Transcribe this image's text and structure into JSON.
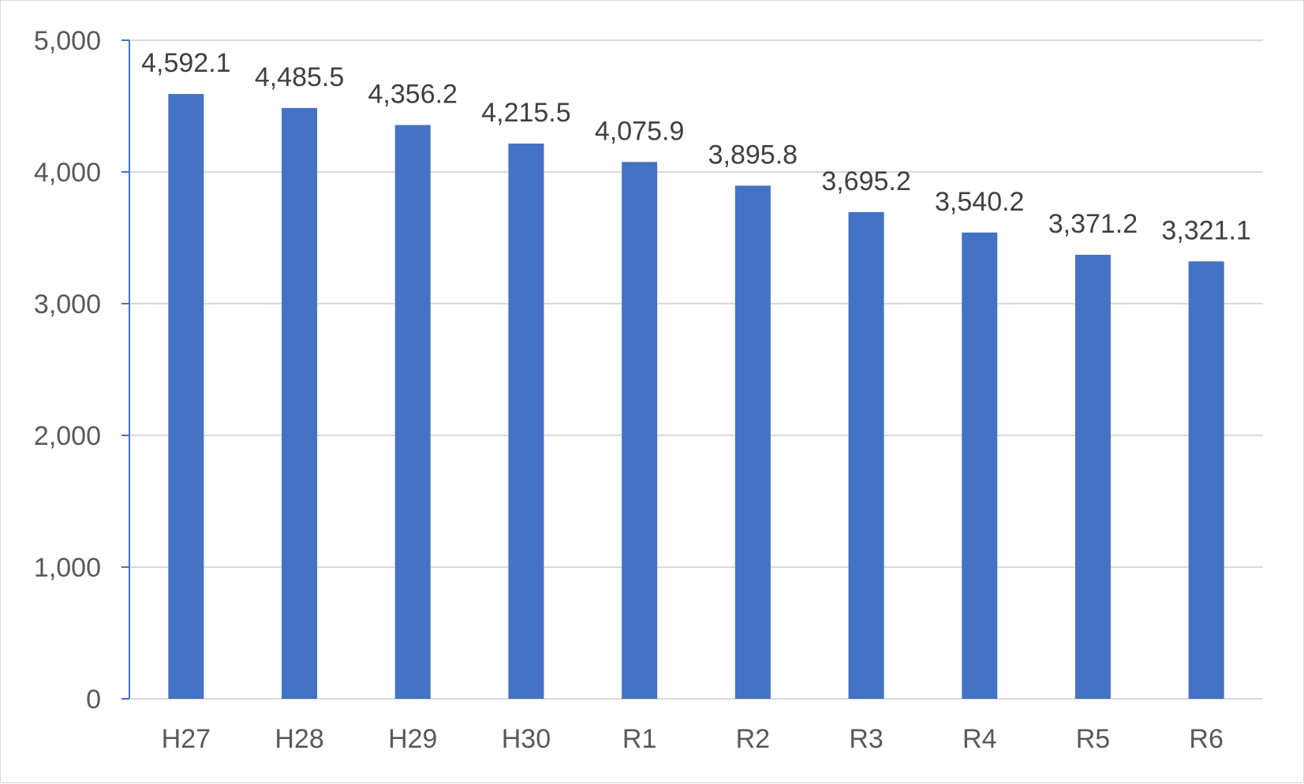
{
  "chart_data": {
    "type": "bar",
    "categories": [
      "H27",
      "H28",
      "H29",
      "H30",
      "R1",
      "R2",
      "R3",
      "R4",
      "R5",
      "R6"
    ],
    "series": [
      {
        "values": [
          4592.1,
          4485.5,
          4356.2,
          4215.5,
          4075.9,
          3895.8,
          3695.2,
          3540.2,
          3371.2,
          3321.1
        ]
      }
    ],
    "data_labels": [
      "4,592.1",
      "4,485.5",
      "4,356.2",
      "4,215.5",
      "4,075.9",
      "3,895.8",
      "3,695.2",
      "3,540.2",
      "3,371.2",
      "3,321.1"
    ],
    "yticks": [
      0,
      1000,
      2000,
      3000,
      4000,
      5000
    ],
    "ytick_labels": [
      "0",
      "1,000",
      "2,000",
      "3,000",
      "4,000",
      "5,000"
    ],
    "ylim": [
      0,
      5000
    ],
    "title": "",
    "xlabel": "",
    "ylabel": "",
    "grid": true,
    "legend": "none",
    "colors": {
      "bar": "#4472C4",
      "grid": "#d9d9d9",
      "y_axis": "#4472C4",
      "tick_text": "#595959",
      "label_text": "#404040"
    }
  }
}
